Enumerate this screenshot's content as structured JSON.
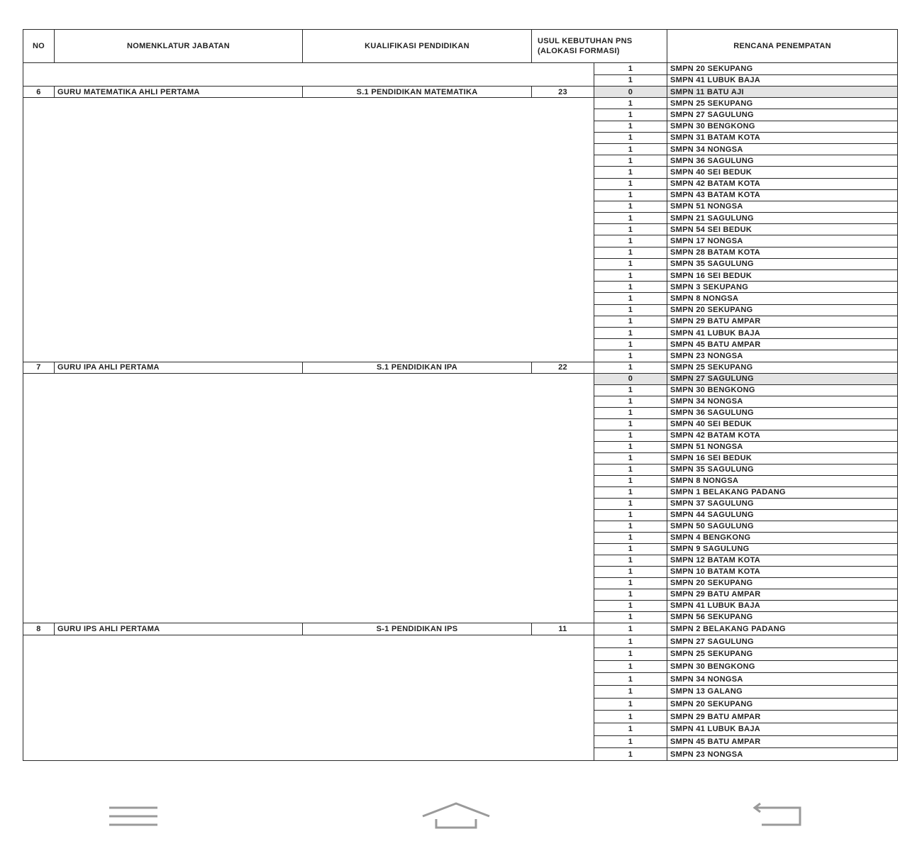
{
  "headers": {
    "no": "NO",
    "nomenklatur": "NOMENKLATUR JABATAN",
    "kualifikasi": "KUALIFIKASI PENDIDIKAN",
    "usul": "USUL KEBUTUHAN PNS (ALOKASI FORMASI)",
    "rencana": "RENCANA PENEMPATAN"
  },
  "carryover": [
    {
      "count": "1",
      "place": "SMPN 20  SEKUPANG"
    },
    {
      "count": "1",
      "place": "SMPN 41  LUBUK BAJA"
    }
  ],
  "groups": [
    {
      "no": "6",
      "jabatan": "GURU MATEMATIKA AHLI PERTAMA",
      "kualifikasi": "S.1 PENDIDIKAN MATEMATIKA",
      "usul": "23",
      "placements": [
        {
          "count": "0",
          "place": "SMPN 11  BATU AJI"
        },
        {
          "count": "1",
          "place": "SMPN 25  SEKUPANG"
        },
        {
          "count": "1",
          "place": "SMPN 27  SAGULUNG"
        },
        {
          "count": "1",
          "place": "SMPN 30  BENGKONG"
        },
        {
          "count": "1",
          "place": "SMPN 31   BATAM KOTA"
        },
        {
          "count": "1",
          "place": "SMPN 34  NONGSA"
        },
        {
          "count": "1",
          "place": "SMPN 36  SAGULUNG"
        },
        {
          "count": "1",
          "place": "SMPN 40  SEI BEDUK"
        },
        {
          "count": "1",
          "place": "SMPN 42   BATAM KOTA"
        },
        {
          "count": "1",
          "place": "SMPN 43   BATAM KOTA"
        },
        {
          "count": "1",
          "place": "SMPN 51  NONGSA"
        },
        {
          "count": "1",
          "place": "SMPN 21  SAGULUNG"
        },
        {
          "count": "1",
          "place": "SMPN 54  SEI BEDUK"
        },
        {
          "count": "1",
          "place": "SMPN 17  NONGSA"
        },
        {
          "count": "1",
          "place": "SMPN 28   BATAM KOTA"
        },
        {
          "count": "1",
          "place": "SMPN 35  SAGULUNG"
        },
        {
          "count": "1",
          "place": "SMPN 16  SEI BEDUK"
        },
        {
          "count": "1",
          "place": "SMPN 3  SEKUPANG"
        },
        {
          "count": "1",
          "place": "SMPN 8  NONGSA"
        },
        {
          "count": "1",
          "place": "SMPN 20  SEKUPANG"
        },
        {
          "count": "1",
          "place": "SMPN 29  BATU AMPAR"
        },
        {
          "count": "1",
          "place": "SMPN 41  LUBUK BAJA"
        },
        {
          "count": "1",
          "place": "SMPN 45   BATU AMPAR"
        },
        {
          "count": "1",
          "place": "SMPN 23  NONGSA"
        }
      ]
    },
    {
      "no": "7",
      "jabatan": "GURU IPA AHLI PERTAMA",
      "kualifikasi": "S.1 PENDIDIKAN IPA",
      "usul": "22",
      "placements": [
        {
          "count": "1",
          "place": "SMPN 25  SEKUPANG"
        },
        {
          "count": "0",
          "place": "SMPN 27  SAGULUNG"
        },
        {
          "count": "1",
          "place": "SMPN 30  BENGKONG"
        },
        {
          "count": "1",
          "place": "SMPN 34  NONGSA"
        },
        {
          "count": "1",
          "place": "SMPN 36  SAGULUNG"
        },
        {
          "count": "1",
          "place": "SMPN 40  SEI BEDUK"
        },
        {
          "count": "1",
          "place": "SMPN 42   BATAM KOTA"
        },
        {
          "count": "1",
          "place": "SMPN 51  NONGSA"
        },
        {
          "count": "1",
          "place": "SMPN 16  SEI BEDUK"
        },
        {
          "count": "1",
          "place": "SMPN 35  SAGULUNG"
        },
        {
          "count": "1",
          "place": "SMPN 8  NONGSA"
        },
        {
          "count": "1",
          "place": "SMPN 1  BELAKANG PADANG"
        },
        {
          "count": "1",
          "place": "SMPN 37  SAGULUNG"
        },
        {
          "count": "1",
          "place": "SMPN 44  SAGULUNG"
        },
        {
          "count": "1",
          "place": "SMPN 50  SAGULUNG"
        },
        {
          "count": "1",
          "place": "SMPN 4  BENGKONG"
        },
        {
          "count": "1",
          "place": "SMPN 9  SAGULUNG"
        },
        {
          "count": "1",
          "place": "SMPN 12   BATAM KOTA"
        },
        {
          "count": "1",
          "place": "SMPN 10   BATAM KOTA"
        },
        {
          "count": "1",
          "place": "SMPN 20  SEKUPANG"
        },
        {
          "count": "1",
          "place": "SMPN 29  BATU AMPAR"
        },
        {
          "count": "1",
          "place": "SMPN 41  LUBUK BAJA"
        },
        {
          "count": "1",
          "place": "SMPN 56  SEKUPANG"
        }
      ]
    },
    {
      "no": "8",
      "jabatan": "GURU IPS AHLI PERTAMA",
      "kualifikasi": "S-1 PENDIDIKAN IPS",
      "usul": "11",
      "placements": [
        {
          "count": "1",
          "place": "SMPN 2 BELAKANG PADANG"
        },
        {
          "count": "1",
          "place": "SMPN 27 SAGULUNG"
        },
        {
          "count": "1",
          "place": "SMPN 25 SEKUPANG"
        },
        {
          "count": "1",
          "place": "SMPN 30 BENGKONG"
        },
        {
          "count": "1",
          "place": "SMPN 34 NONGSA"
        },
        {
          "count": "1",
          "place": "SMPN 13  GALANG"
        },
        {
          "count": "1",
          "place": "SMPN 20 SEKUPANG"
        },
        {
          "count": "1",
          "place": "SMPN 29 BATU AMPAR"
        },
        {
          "count": "1",
          "place": "SMPN 41 LUBUK BAJA"
        },
        {
          "count": "1",
          "place": "SMPN 45 BATU AMPAR"
        },
        {
          "count": "1",
          "place": "SMPN 23 NONGSA"
        }
      ]
    }
  ],
  "nav": {
    "icons": [
      "menu-icon",
      "home-icon",
      "back-icon"
    ],
    "color": "#9a9a9a"
  }
}
